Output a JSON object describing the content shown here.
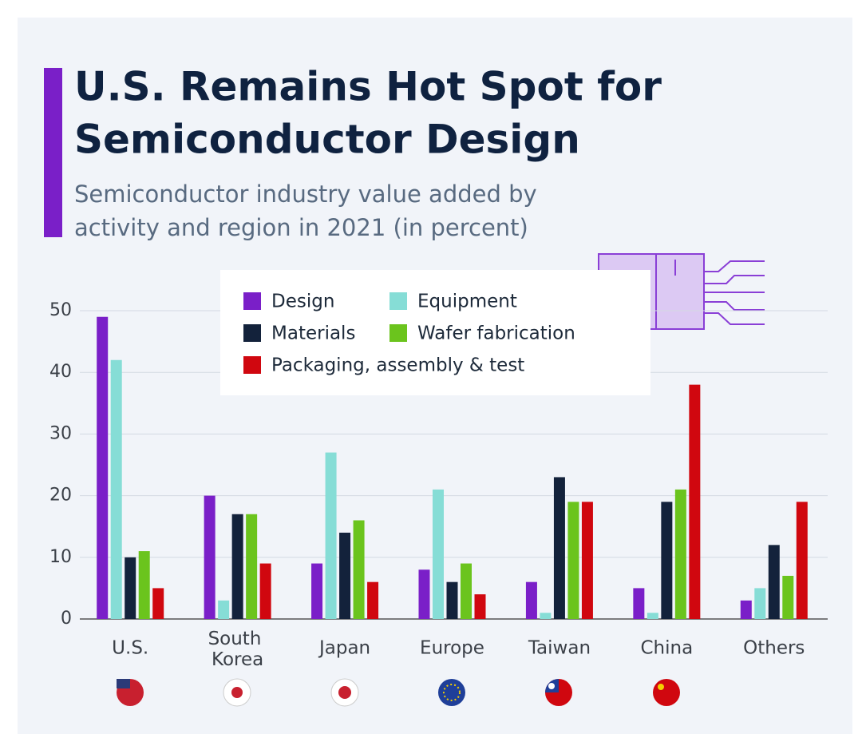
{
  "chart_data": {
    "type": "bar",
    "title": [
      "U.S. Remains Hot Spot for",
      "Semiconductor Design"
    ],
    "subtitle": [
      "Semiconductor industry value added by",
      "activity and region in 2021 (in percent)"
    ],
    "categories": [
      "U.S.",
      "South Korea",
      "Japan",
      "Europe",
      "Taiwan",
      "China",
      "Others"
    ],
    "series": [
      {
        "name": "Design",
        "color": "#7a1fc8",
        "values": [
          49,
          20,
          9,
          8,
          6,
          5,
          3
        ]
      },
      {
        "name": "Equipment",
        "color": "#86ddd6",
        "values": [
          42,
          3,
          27,
          21,
          1,
          1,
          5
        ]
      },
      {
        "name": "Materials",
        "color": "#13223b",
        "values": [
          10,
          17,
          14,
          6,
          23,
          19,
          12
        ]
      },
      {
        "name": "Wafer fabrication",
        "color": "#6bc41d",
        "values": [
          11,
          17,
          16,
          9,
          19,
          21,
          7
        ]
      },
      {
        "name": "Packaging, assembly & test",
        "color": "#d0070f",
        "values": [
          5,
          9,
          6,
          4,
          19,
          38,
          19
        ]
      }
    ],
    "ylim": [
      0,
      50
    ],
    "yticks": [
      0,
      10,
      20,
      30,
      40,
      50
    ],
    "grid": true
  }
}
